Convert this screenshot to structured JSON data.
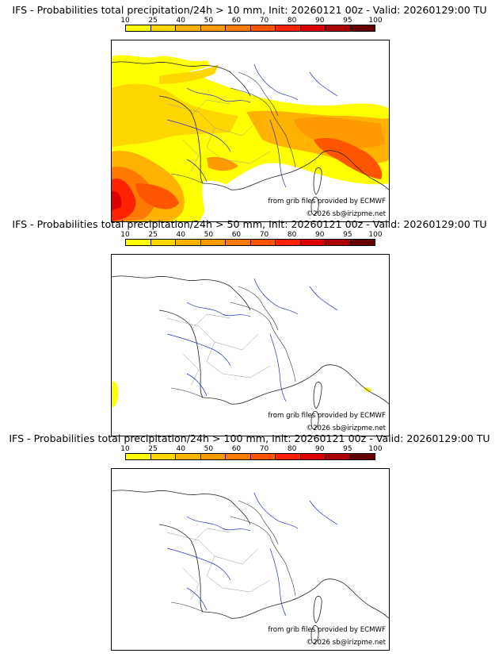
{
  "colorbar": {
    "labels": [
      "10",
      "25",
      "40",
      "50",
      "60",
      "70",
      "80",
      "90",
      "95",
      "100"
    ],
    "colors": [
      "#ffff00",
      "#ffd700",
      "#ffb300",
      "#ff9900",
      "#ff7a00",
      "#ff5500",
      "#ff2200",
      "#dd0000",
      "#aa0000",
      "#660000"
    ]
  },
  "panels": [
    {
      "title": "IFS - Probabilities total precipitation/24h > 10 mm, Init: 20260121 00z - Valid: 20260129:00 TU",
      "credit": "from grib files provided by ECMWF",
      "copyright": "©2026 sb@irizpme.net"
    },
    {
      "title": "IFS - Probabilities total precipitation/24h > 50 mm, Init: 20260121 00z - Valid: 20260129:00 TU",
      "credit": "from grib files provided by ECMWF",
      "copyright": "©2026 sb@irizpme.net"
    },
    {
      "title": "IFS - Probabilities total precipitation/24h > 100 mm, Init: 20260121 00z - Valid: 20260129:00 TU",
      "credit": "from grib files provided by ECMWF",
      "copyright": "©2026 sb@irizpme.net"
    }
  ]
}
